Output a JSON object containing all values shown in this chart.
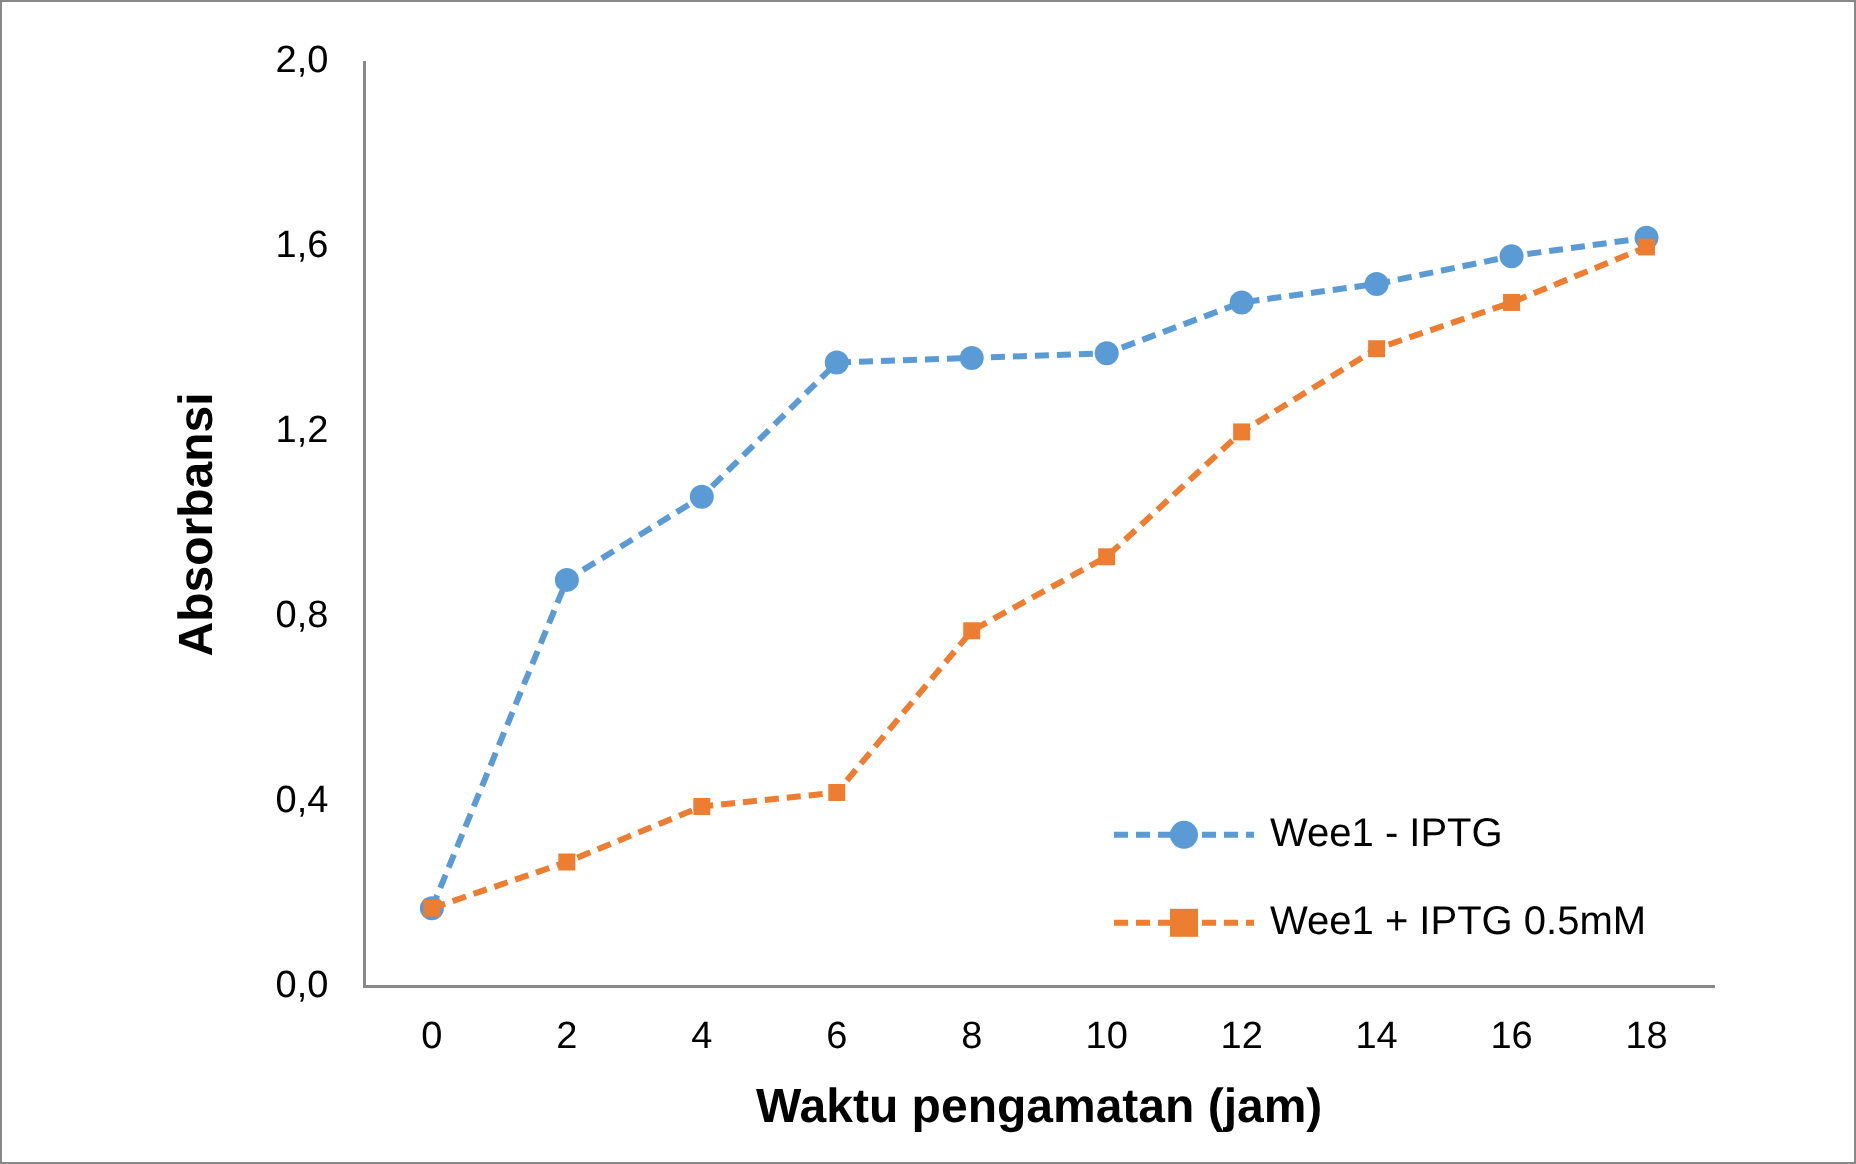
{
  "chart_data": {
    "type": "line",
    "xlabel": "Waktu pengamatan (jam)",
    "ylabel": "Absorbansi",
    "categories": [
      "0",
      "2",
      "4",
      "6",
      "8",
      "10",
      "12",
      "14",
      "16",
      "18"
    ],
    "series": [
      {
        "name": "Wee1 - IPTG",
        "color": "#5b9bd5",
        "marker": "circle",
        "values": [
          0.17,
          0.88,
          1.06,
          1.35,
          1.36,
          1.37,
          1.48,
          1.52,
          1.58,
          1.62
        ]
      },
      {
        "name": "Wee1 + IPTG 0.5mM",
        "color": "#ed7d31",
        "marker": "square",
        "values": [
          0.17,
          0.27,
          0.39,
          0.42,
          0.77,
          0.93,
          1.2,
          1.38,
          1.48,
          1.6
        ]
      }
    ],
    "ylim": [
      0,
      2
    ],
    "yticks": [
      {
        "value": 0,
        "label": "0,0"
      },
      {
        "value": 0.4,
        "label": "0,4"
      },
      {
        "value": 0.8,
        "label": "0,8"
      },
      {
        "value": 1.2,
        "label": "1,2"
      },
      {
        "value": 1.6,
        "label": "1,6"
      },
      {
        "value": 2,
        "label": "2,0"
      }
    ],
    "grid": false,
    "legend": "bottom right",
    "line_style": "dashed"
  }
}
